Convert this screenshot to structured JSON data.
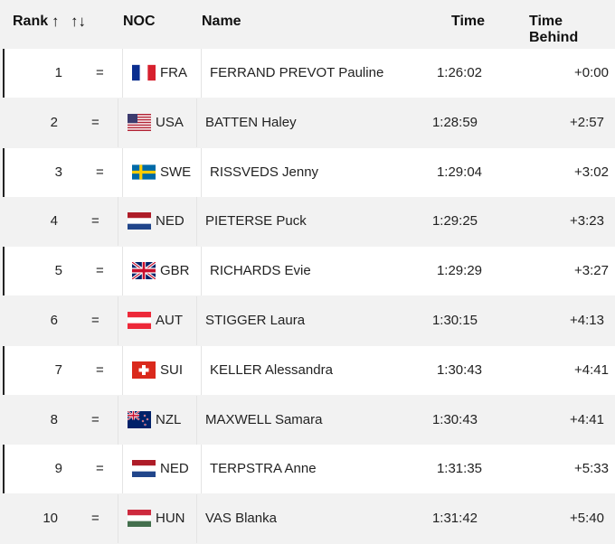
{
  "header": {
    "rank": "Rank",
    "arrow_a": "↑",
    "arrow_b": "↑↓",
    "noc": "NOC",
    "name": "Name",
    "time": "Time",
    "time_behind": "Time Behind"
  },
  "rows": [
    {
      "rank": "1",
      "change": "=",
      "noc": "FRA",
      "flag": "flag-france-icon",
      "name": "FERRAND PREVOT Pauline",
      "time": "1:26:02",
      "behind": "+0:00"
    },
    {
      "rank": "2",
      "change": "=",
      "noc": "USA",
      "flag": "flag-usa-icon",
      "name": "BATTEN Haley",
      "time": "1:28:59",
      "behind": "+2:57"
    },
    {
      "rank": "3",
      "change": "=",
      "noc": "SWE",
      "flag": "flag-sweden-icon",
      "name": "RISSVEDS Jenny",
      "time": "1:29:04",
      "behind": "+3:02"
    },
    {
      "rank": "4",
      "change": "=",
      "noc": "NED",
      "flag": "flag-netherlands-icon",
      "name": "PIETERSE Puck",
      "time": "1:29:25",
      "behind": "+3:23"
    },
    {
      "rank": "5",
      "change": "=",
      "noc": "GBR",
      "flag": "flag-uk-icon",
      "name": "RICHARDS Evie",
      "time": "1:29:29",
      "behind": "+3:27"
    },
    {
      "rank": "6",
      "change": "=",
      "noc": "AUT",
      "flag": "flag-austria-icon",
      "name": "STIGGER Laura",
      "time": "1:30:15",
      "behind": "+4:13"
    },
    {
      "rank": "7",
      "change": "=",
      "noc": "SUI",
      "flag": "flag-switzerland-icon",
      "name": "KELLER Alessandra",
      "time": "1:30:43",
      "behind": "+4:41"
    },
    {
      "rank": "8",
      "change": "=",
      "noc": "NZL",
      "flag": "flag-new-zealand-icon",
      "name": "MAXWELL Samara",
      "time": "1:30:43",
      "behind": "+4:41"
    },
    {
      "rank": "9",
      "change": "=",
      "noc": "NED",
      "flag": "flag-netherlands-icon",
      "name": "TERPSTRA Anne",
      "time": "1:31:35",
      "behind": "+5:33"
    },
    {
      "rank": "10",
      "change": "=",
      "noc": "HUN",
      "flag": "flag-hungary-icon",
      "name": "VAS Blanka",
      "time": "1:31:42",
      "behind": "+5:40"
    }
  ]
}
